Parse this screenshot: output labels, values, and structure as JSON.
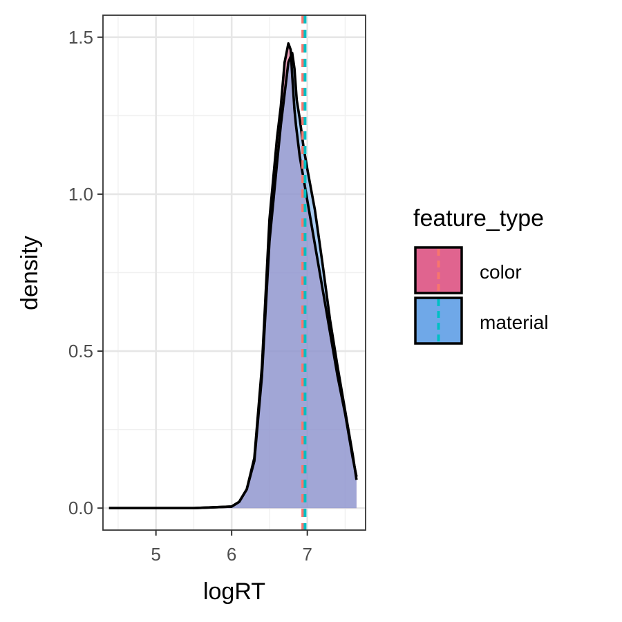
{
  "chart_data": {
    "type": "area",
    "subtype": "density",
    "title": "",
    "xlabel": "logRT",
    "ylabel": "density",
    "xlim": [
      4.3,
      7.77
    ],
    "ylim": [
      -0.07,
      1.57
    ],
    "x_ticks": [
      5,
      6,
      7
    ],
    "x_tick_labels": [
      "5",
      "6",
      "7"
    ],
    "y_ticks": [
      0.0,
      0.5,
      1.0,
      1.5
    ],
    "y_tick_labels": [
      "0.0",
      "0.5",
      "1.0",
      "1.5"
    ],
    "grid": true,
    "legend": {
      "title": "feature_type",
      "position": "right",
      "entries": [
        "color",
        "material"
      ]
    },
    "series": [
      {
        "name": "color",
        "fill_color": "#e0648f",
        "line_color": "#f8766d",
        "mean": 6.94,
        "x": [
          4.38,
          5.5,
          6.0,
          6.1,
          6.2,
          6.3,
          6.4,
          6.5,
          6.6,
          6.65,
          6.7,
          6.75,
          6.78,
          6.8,
          6.83,
          6.85,
          6.9,
          6.95,
          7.0,
          7.1,
          7.2,
          7.3,
          7.4,
          7.5,
          7.6,
          7.65
        ],
        "y": [
          0.0,
          0.0,
          0.005,
          0.02,
          0.06,
          0.16,
          0.45,
          0.92,
          1.18,
          1.28,
          1.42,
          1.48,
          1.46,
          1.38,
          1.27,
          1.22,
          1.12,
          1.05,
          0.98,
          0.84,
          0.7,
          0.56,
          0.42,
          0.3,
          0.16,
          0.1
        ]
      },
      {
        "name": "material",
        "fill_color": "#6fa8e8",
        "line_color": "#00bfc4",
        "mean": 6.97,
        "x": [
          4.38,
          5.5,
          6.0,
          6.1,
          6.2,
          6.3,
          6.4,
          6.5,
          6.6,
          6.65,
          6.7,
          6.75,
          6.8,
          6.83,
          6.86,
          6.9,
          6.95,
          7.0,
          7.1,
          7.2,
          7.3,
          7.4,
          7.5,
          7.6,
          7.65
        ],
        "y": [
          0.0,
          0.0,
          0.005,
          0.02,
          0.06,
          0.15,
          0.42,
          0.85,
          1.1,
          1.22,
          1.32,
          1.42,
          1.45,
          1.4,
          1.3,
          1.24,
          1.15,
          1.08,
          0.95,
          0.78,
          0.6,
          0.45,
          0.31,
          0.17,
          0.09
        ]
      }
    ]
  }
}
